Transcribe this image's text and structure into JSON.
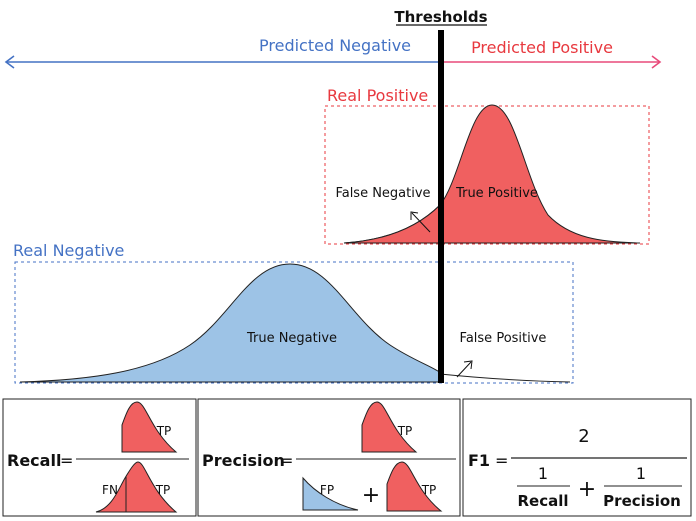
{
  "header": {
    "thresholds": "Thresholds"
  },
  "arrows": {
    "predicted_negative": "Predicted Negative",
    "predicted_positive": "Predicted Positive"
  },
  "positive_box": {
    "title": "Real Positive",
    "false_negative": "False Negative",
    "true_positive": "True Positive"
  },
  "negative_box": {
    "title": "Real Negative",
    "true_negative": "True Negative",
    "false_positive": "False Positive"
  },
  "formulas": {
    "recall": {
      "label": "Recall",
      "equals": "=",
      "num_tag": "TP",
      "den_fn": "FN",
      "den_tp": "TP"
    },
    "precision": {
      "label": "Precision",
      "equals": "=",
      "num_tag": "TP",
      "den_fp": "FP",
      "plus": "+",
      "den_tp": "TP"
    },
    "f1": {
      "label": "F1",
      "equals": "=",
      "numerator": "2",
      "one_a": "1",
      "recall": "Recall",
      "plus": "+",
      "one_b": "1",
      "precision": "Precision"
    }
  },
  "colors": {
    "negative_blue": "#4472C4",
    "positive_red": "#E8393F",
    "curve_blue_fill": "#9DC3E6",
    "curve_red_fill": "#F06060"
  }
}
